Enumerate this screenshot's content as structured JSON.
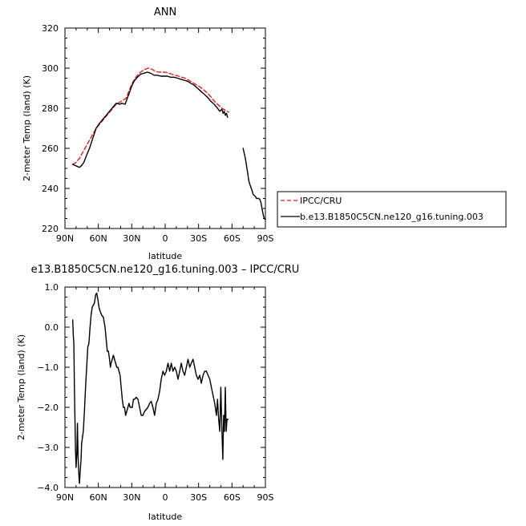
{
  "chart_data": [
    {
      "type": "line",
      "title": "ANN",
      "xlabel": "latitude",
      "ylabel": "2-meter Temp (land) (K)",
      "xlim": [
        90,
        -90
      ],
      "ylim": [
        220,
        320
      ],
      "x_ticks": [
        {
          "value": 90,
          "label": "90N"
        },
        {
          "value": 60,
          "label": "60N"
        },
        {
          "value": 30,
          "label": "30N"
        },
        {
          "value": 0,
          "label": "0"
        },
        {
          "value": -30,
          "label": "30S"
        },
        {
          "value": -60,
          "label": "60S"
        },
        {
          "value": -90,
          "label": "90S"
        }
      ],
      "y_ticks": [
        {
          "value": 220,
          "label": "220"
        },
        {
          "value": 240,
          "label": "240"
        },
        {
          "value": 260,
          "label": "260"
        },
        {
          "value": 280,
          "label": "280"
        },
        {
          "value": 300,
          "label": "300"
        },
        {
          "value": 320,
          "label": "320"
        }
      ],
      "legend_position": "right",
      "series": [
        {
          "name": "IPCC/CRU",
          "color": "#e02020",
          "dash": "dashed",
          "points": [
            [
              83,
              252
            ],
            [
              80,
              253
            ],
            [
              77,
              255
            ],
            [
              74,
              258
            ],
            [
              71,
              261
            ],
            [
              68,
              264
            ],
            [
              65,
              267
            ],
            [
              62,
              270
            ],
            [
              59,
              272
            ],
            [
              56,
              274
            ],
            [
              53,
              276
            ],
            [
              50,
              278
            ],
            [
              47,
              280
            ],
            [
              44,
              282
            ],
            [
              41,
              283
            ],
            [
              38,
              284
            ],
            [
              35,
              285
            ],
            [
              33,
              288
            ],
            [
              30,
              292
            ],
            [
              27,
              295
            ],
            [
              24,
              297
            ],
            [
              21,
              298.5
            ],
            [
              18,
              299.5
            ],
            [
              15,
              300
            ],
            [
              12,
              299.5
            ],
            [
              9,
              298.5
            ],
            [
              6,
              298
            ],
            [
              3,
              298
            ],
            [
              0,
              298
            ],
            [
              -3,
              297.5
            ],
            [
              -6,
              297
            ],
            [
              -9,
              296.5
            ],
            [
              -12,
              296
            ],
            [
              -15,
              295.5
            ],
            [
              -18,
              295
            ],
            [
              -21,
              294
            ],
            [
              -24,
              293
            ],
            [
              -27,
              292
            ],
            [
              -30,
              291
            ],
            [
              -33,
              290
            ],
            [
              -36,
              288.5
            ],
            [
              -39,
              287
            ],
            [
              -42,
              285
            ],
            [
              -45,
              283
            ],
            [
              -48,
              281.5
            ],
            [
              -51,
              280
            ],
            [
              -54,
              279
            ],
            [
              -57,
              278
            ]
          ]
        },
        {
          "name": "b.e13.B1850C5CN.ne120_g16.tuning.003",
          "color": "#000000",
          "dash": "solid",
          "segments": [
            [
              [
                83,
                252
              ],
              [
                81,
                251.5
              ],
              [
                79,
                251
              ],
              [
                77,
                250.5
              ],
              [
                75,
                251.5
              ],
              [
                73,
                253
              ],
              [
                71,
                256
              ],
              [
                68,
                260
              ],
              [
                65,
                265
              ],
              [
                62,
                270
              ],
              [
                59,
                272.5
              ],
              [
                56,
                274.5
              ],
              [
                53,
                276.5
              ],
              [
                50,
                278.5
              ],
              [
                47,
                280.5
              ],
              [
                44,
                282.5
              ],
              [
                41,
                282
              ],
              [
                39,
                282.5
              ],
              [
                36,
                282
              ],
              [
                34,
                285
              ],
              [
                32,
                288
              ],
              [
                30,
                291
              ],
              [
                28,
                293.5
              ],
              [
                25,
                295.5
              ],
              [
                22,
                297
              ],
              [
                19,
                297.5
              ],
              [
                16,
                298
              ],
              [
                13,
                297.5
              ],
              [
                10,
                296.5
              ],
              [
                7,
                296.5
              ],
              [
                4,
                296
              ],
              [
                1,
                296
              ],
              [
                -2,
                296
              ],
              [
                -5,
                295.5
              ],
              [
                -8,
                295.5
              ],
              [
                -11,
                295
              ],
              [
                -14,
                294.5
              ],
              [
                -17,
                294
              ],
              [
                -20,
                293.5
              ],
              [
                -23,
                292.5
              ],
              [
                -26,
                291.5
              ],
              [
                -29,
                290
              ],
              [
                -32,
                288.5
              ],
              [
                -35,
                287
              ],
              [
                -38,
                285.5
              ],
              [
                -41,
                283.5
              ],
              [
                -44,
                282
              ],
              [
                -47,
                280
              ],
              [
                -49,
                278.5
              ],
              [
                -51,
                279.5
              ],
              [
                -52,
                277.5
              ],
              [
                -53,
                278.5
              ],
              [
                -54,
                276.5
              ],
              [
                -55,
                277.5
              ],
              [
                -56,
                275.5
              ]
            ],
            [
              [
                -70,
                260
              ],
              [
                -72,
                255
              ],
              [
                -74,
                248
              ],
              [
                -75,
                244
              ],
              [
                -76,
                242
              ],
              [
                -78,
                239
              ],
              [
                -79,
                237
              ],
              [
                -81,
                236
              ],
              [
                -82,
                235
              ],
              [
                -84,
                235
              ],
              [
                -85,
                234.5
              ],
              [
                -86,
                233
              ],
              [
                -87,
                230
              ],
              [
                -88,
                227
              ],
              [
                -89,
                225
              ],
              [
                -90,
                224.5
              ]
            ]
          ]
        }
      ]
    },
    {
      "type": "line",
      "title": "e13.B1850C5CN.ne120_g16.tuning.003 – IPCC/CRU",
      "xlabel": "latitude",
      "ylabel": "2-meter Temp (land) (K)",
      "xlim": [
        90,
        -90
      ],
      "ylim": [
        -4.0,
        1.0
      ],
      "x_ticks": [
        {
          "value": 90,
          "label": "90N"
        },
        {
          "value": 60,
          "label": "60N"
        },
        {
          "value": 30,
          "label": "30N"
        },
        {
          "value": 0,
          "label": "0"
        },
        {
          "value": -30,
          "label": "30S"
        },
        {
          "value": -60,
          "label": "60S"
        },
        {
          "value": -90,
          "label": "90S"
        }
      ],
      "y_ticks": [
        {
          "value": -4.0,
          "label": "−4.0"
        },
        {
          "value": -3.0,
          "label": "−3.0"
        },
        {
          "value": -2.0,
          "label": "−2.0"
        },
        {
          "value": -1.0,
          "label": "−1.0"
        },
        {
          "value": 0.0,
          "label": "0.0"
        },
        {
          "value": 1.0,
          "label": "1.0"
        }
      ],
      "series": [
        {
          "color": "#000000",
          "dash": "solid",
          "points": [
            [
              83,
              0.18
            ],
            [
              82.5,
              -0.2
            ],
            [
              82,
              -0.4
            ],
            [
              81.5,
              -1.5
            ],
            [
              81,
              -2.3
            ],
            [
              80.5,
              -3.1
            ],
            [
              80,
              -3.5
            ],
            [
              79.3,
              -3.1
            ],
            [
              78.8,
              -2.4
            ],
            [
              78.3,
              -3.2
            ],
            [
              77.5,
              -3.7
            ],
            [
              77,
              -3.9
            ],
            [
              76.3,
              -3.6
            ],
            [
              75.5,
              -3.3
            ],
            [
              75,
              -2.9
            ],
            [
              74.5,
              -2.8
            ],
            [
              73.5,
              -2.6
            ],
            [
              72.5,
              -2.1
            ],
            [
              71.5,
              -1.5
            ],
            [
              70.5,
              -1.0
            ],
            [
              69.5,
              -0.5
            ],
            [
              68.5,
              -0.4
            ],
            [
              67.5,
              0.0
            ],
            [
              66.5,
              0.3
            ],
            [
              65.5,
              0.5
            ],
            [
              64.5,
              0.55
            ],
            [
              63.5,
              0.6
            ],
            [
              62.5,
              0.8
            ],
            [
              61.5,
              0.85
            ],
            [
              60.5,
              0.7
            ],
            [
              59.5,
              0.5
            ],
            [
              58.5,
              0.4
            ],
            [
              57,
              0.3
            ],
            [
              55.5,
              0.25
            ],
            [
              54,
              0.0
            ],
            [
              53,
              -0.3
            ],
            [
              52,
              -0.6
            ],
            [
              51,
              -0.6
            ],
            [
              50,
              -0.8
            ],
            [
              49.2,
              -1.0
            ],
            [
              48.5,
              -0.9
            ],
            [
              47.5,
              -0.8
            ],
            [
              46.5,
              -0.7
            ],
            [
              45.5,
              -0.8
            ],
            [
              44.5,
              -0.9
            ],
            [
              43.5,
              -1.0
            ],
            [
              42.5,
              -1.0
            ],
            [
              41.5,
              -1.1
            ],
            [
              40.5,
              -1.2
            ],
            [
              39.5,
              -1.5
            ],
            [
              38.5,
              -1.8
            ],
            [
              37.5,
              -2.0
            ],
            [
              36.5,
              -2.0
            ],
            [
              35.5,
              -2.2
            ],
            [
              34.5,
              -2.1
            ],
            [
              33.5,
              -2.0
            ],
            [
              32.5,
              -1.9
            ],
            [
              31.5,
              -2.0
            ],
            [
              30.5,
              -2.0
            ],
            [
              29.5,
              -2.0
            ],
            [
              28.5,
              -1.8
            ],
            [
              27.5,
              -1.8
            ],
            [
              26,
              -1.75
            ],
            [
              24.5,
              -1.8
            ],
            [
              23,
              -2.0
            ],
            [
              21.5,
              -2.2
            ],
            [
              20,
              -2.2
            ],
            [
              18.5,
              -2.1
            ],
            [
              17,
              -2.05
            ],
            [
              15.5,
              -2.0
            ],
            [
              14,
              -1.9
            ],
            [
              12.5,
              -1.85
            ],
            [
              11,
              -2.0
            ],
            [
              9.5,
              -2.2
            ],
            [
              8,
              -1.9
            ],
            [
              6.5,
              -1.8
            ],
            [
              5,
              -1.6
            ],
            [
              3.5,
              -1.3
            ],
            [
              2,
              -1.1
            ],
            [
              0.5,
              -1.2
            ],
            [
              -1,
              -1.1
            ],
            [
              -2.5,
              -0.9
            ],
            [
              -4,
              -1.1
            ],
            [
              -5.5,
              -0.9
            ],
            [
              -7,
              -1.1
            ],
            [
              -8.5,
              -1.0
            ],
            [
              -10,
              -1.1
            ],
            [
              -11.5,
              -1.3
            ],
            [
              -13,
              -1.1
            ],
            [
              -14.5,
              -0.9
            ],
            [
              -16,
              -1.1
            ],
            [
              -17.5,
              -1.2
            ],
            [
              -19,
              -1.0
            ],
            [
              -20.5,
              -0.8
            ],
            [
              -22,
              -1.0
            ],
            [
              -23.5,
              -0.9
            ],
            [
              -25,
              -0.8
            ],
            [
              -26.5,
              -1.0
            ],
            [
              -28,
              -1.2
            ],
            [
              -29.5,
              -1.3
            ],
            [
              -31,
              -1.2
            ],
            [
              -32.5,
              -1.4
            ],
            [
              -34,
              -1.2
            ],
            [
              -35.5,
              -1.1
            ],
            [
              -37,
              -1.1
            ],
            [
              -38.5,
              -1.2
            ],
            [
              -40,
              -1.3
            ],
            [
              -41.5,
              -1.5
            ],
            [
              -43,
              -1.7
            ],
            [
              -44.5,
              -1.9
            ],
            [
              -46,
              -2.2
            ],
            [
              -47,
              -1.8
            ],
            [
              -48,
              -2.3
            ],
            [
              -49,
              -2.6
            ],
            [
              -50,
              -1.5
            ],
            [
              -51,
              -2.6
            ],
            [
              -51.8,
              -3.3
            ],
            [
              -52.5,
              -2.2
            ],
            [
              -53.2,
              -2.6
            ],
            [
              -54,
              -1.5
            ],
            [
              -54.8,
              -2.6
            ],
            [
              -55.5,
              -2.3
            ],
            [
              -56.5,
              -2.3
            ]
          ]
        }
      ]
    }
  ]
}
